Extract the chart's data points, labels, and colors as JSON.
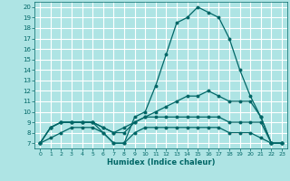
{
  "xlabel": "Humidex (Indice chaleur)",
  "ylabel": "",
  "xlim": [
    -0.5,
    23.5
  ],
  "ylim": [
    6.5,
    20.5
  ],
  "yticks": [
    7,
    8,
    9,
    10,
    11,
    12,
    13,
    14,
    15,
    16,
    17,
    18,
    19,
    20
  ],
  "xticks": [
    0,
    1,
    2,
    3,
    4,
    5,
    6,
    7,
    8,
    9,
    10,
    11,
    12,
    13,
    14,
    15,
    16,
    17,
    18,
    19,
    20,
    21,
    22,
    23
  ],
  "background_color": "#aee4e4",
  "grid_color": "#ffffff",
  "line_color": "#006666",
  "lines": [
    [
      7,
      8.5,
      9,
      9,
      9,
      9,
      8,
      7,
      7,
      9.5,
      10,
      12.5,
      15.5,
      18.5,
      19,
      20,
      19.5,
      19,
      17,
      14,
      11.5,
      9.5,
      7,
      7
    ],
    [
      7,
      8.5,
      9,
      9,
      9,
      9,
      8.5,
      8,
      8,
      9,
      9.5,
      10,
      10.5,
      11,
      11.5,
      11.5,
      12,
      11.5,
      11,
      11,
      11,
      9.5,
      7,
      7
    ],
    [
      7,
      8.5,
      9,
      9,
      9,
      9,
      8.5,
      8,
      8.5,
      9,
      9.5,
      9.5,
      9.5,
      9.5,
      9.5,
      9.5,
      9.5,
      9.5,
      9,
      9,
      9,
      9,
      7,
      7
    ],
    [
      7,
      7.5,
      8,
      8.5,
      8.5,
      8.5,
      8,
      7,
      7,
      8,
      8.5,
      8.5,
      8.5,
      8.5,
      8.5,
      8.5,
      8.5,
      8.5,
      8,
      8,
      8,
      7.5,
      7,
      7
    ]
  ]
}
